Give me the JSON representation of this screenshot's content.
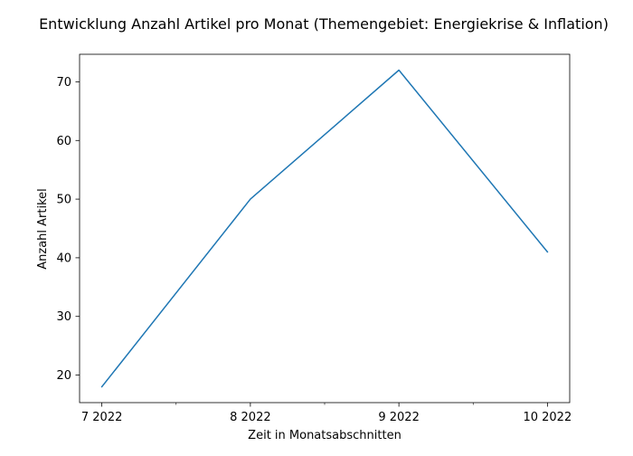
{
  "chart_data": {
    "type": "line",
    "title": "Entwicklung Anzahl Artikel pro Monat (Themengebiet: Energiekrise & Inflation)",
    "xlabel": "Zeit in Monatsabschnitten",
    "ylabel": "Anzahl Artikel",
    "categories": [
      "7 2022",
      "8 2022",
      "9 2022",
      "10 2022"
    ],
    "series": [
      {
        "values": [
          18,
          50,
          72,
          41
        ],
        "color": "#1f77b4"
      }
    ],
    "xlim": [
      -0.15,
      3.15
    ],
    "ylim": [
      15.3,
      74.7
    ],
    "yticks": [
      20,
      30,
      40,
      50,
      60,
      70
    ],
    "minor_xticks": [
      0.5,
      1.5,
      2.5
    ],
    "grid": false
  }
}
